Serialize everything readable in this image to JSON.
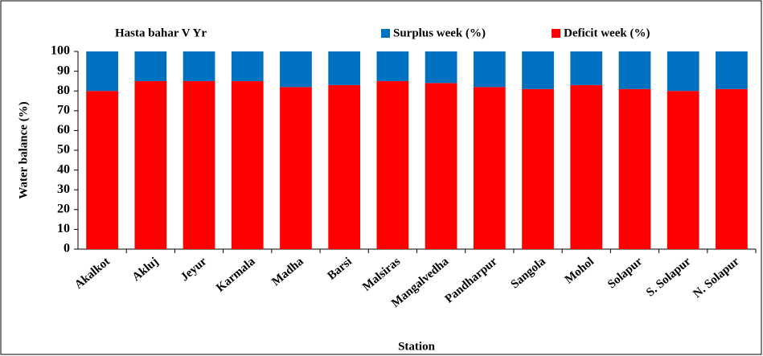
{
  "chart_data": {
    "type": "stacked_bar",
    "title": "Hasta bahar V Yr",
    "x_label": "Station",
    "y_label": "Water balance (%)",
    "categories": [
      "Akalkot",
      "Akluj",
      "Jeyur",
      "Karmala",
      "Madha",
      "Barsi",
      "Malsiras",
      "Mangalvedha",
      "Pandharpur",
      "Sangola",
      "Mohol",
      "Solapur",
      "S. Solapur",
      "N. Solapur"
    ],
    "series": [
      {
        "name": "Surplus week (%)",
        "color": "#0070c0",
        "values": [
          20,
          15,
          15,
          15,
          18,
          17,
          15,
          16,
          18,
          19,
          17,
          19,
          20,
          19
        ]
      },
      {
        "name": "Deficit week (%)",
        "color": "#ff0000",
        "values": [
          80,
          85,
          85,
          85,
          82,
          83,
          85,
          84,
          82,
          81,
          83,
          81,
          80,
          81
        ]
      }
    ],
    "ylim": [
      0,
      100
    ],
    "yticks": [
      0,
      10,
      20,
      30,
      40,
      50,
      60,
      70,
      80,
      90,
      100
    ]
  }
}
